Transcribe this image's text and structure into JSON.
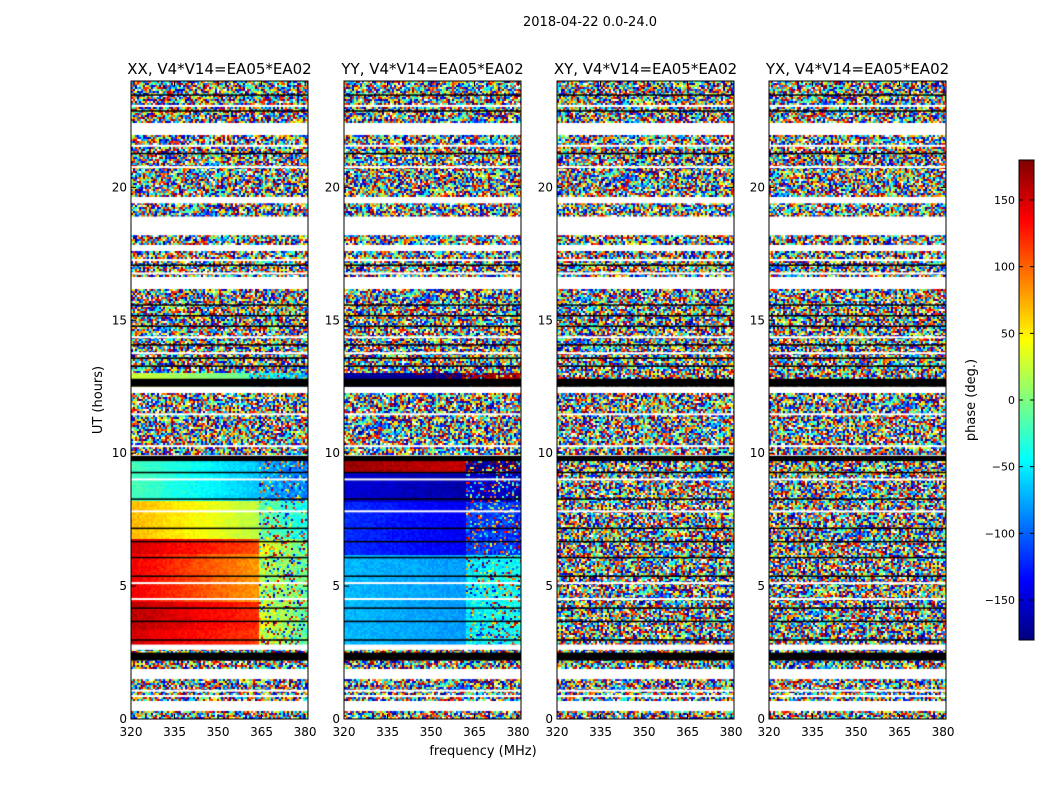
{
  "figure": {
    "suptitle": "2018-04-22 0.0-24.0",
    "xlabel": "frequency (MHz)",
    "ylabel": "UT (hours)"
  },
  "colorbar": {
    "label": "phase (deg.)",
    "range": [
      -180,
      180
    ],
    "ticks": [
      -150,
      -100,
      -50,
      0,
      50,
      100,
      150
    ],
    "tick_labels": [
      "−150",
      "−100",
      "−50",
      "0",
      "50",
      "100",
      "150"
    ],
    "colormap": "jet",
    "colors": [
      "#00007f",
      "#0000ff",
      "#007fff",
      "#00ffff",
      "#7fff7f",
      "#ffff00",
      "#ff7f00",
      "#ff0000",
      "#7f0000"
    ]
  },
  "chart_data": {
    "type": "heatmap",
    "value": "phase (deg.)",
    "xlim": [
      320,
      381
    ],
    "ylim": [
      0,
      24
    ],
    "x_ticks": [
      320,
      335,
      350,
      365,
      380
    ],
    "y_ticks": [
      0,
      5,
      10,
      15,
      20
    ],
    "panels": [
      {
        "title": "XX, V4*V14=EA05*EA02",
        "segments": [
          {
            "y": [
              2.8,
              3.4
            ],
            "x_split": 364,
            "before": [
              150,
              115
            ],
            "after": [
              30,
              -20
            ]
          },
          {
            "y": [
              3.4,
              4.4
            ],
            "x_split": 364,
            "before": [
              160,
              120
            ],
            "after": [
              40,
              -15
            ]
          },
          {
            "y": [
              4.4,
              6.2
            ],
            "x_split": 364,
            "before": [
              140,
              80
            ],
            "after": [
              20,
              -10
            ]
          },
          {
            "y": [
              6.2,
              6.8
            ],
            "x_split": 364,
            "before": [
              150,
              110
            ],
            "after": [
              40,
              -10
            ]
          },
          {
            "y": [
              6.8,
              8.2
            ],
            "x_split": 364,
            "before": [
              70,
              20
            ],
            "after": [
              -10,
              -40
            ]
          },
          {
            "y": [
              8.2,
              9.7
            ],
            "x_split": 364,
            "before": [
              -20,
              -65
            ],
            "after": [
              -70,
              -95
            ]
          },
          {
            "y": [
              12.5,
              13.0
            ],
            "x_split": 360,
            "before": [
              30,
              -10
            ],
            "after": [
              -40,
              -70
            ]
          }
        ]
      },
      {
        "title": "YY, V4*V14=EA05*EA02",
        "segments": [
          {
            "y": [
              2.8,
              6.2
            ],
            "x_split": 362,
            "before": [
              -70,
              -80
            ],
            "after": [
              -50,
              -40
            ]
          },
          {
            "y": [
              6.2,
              8.2
            ],
            "x_split": 362,
            "before": [
              -120,
              -140
            ],
            "after": [
              -110,
              -120
            ]
          },
          {
            "y": [
              8.2,
              9.3
            ],
            "x_split": 362,
            "before": [
              -150,
              -165
            ],
            "after": [
              -150,
              -160
            ]
          },
          {
            "y": [
              9.3,
              9.7
            ],
            "x_split": 362,
            "before": [
              170,
              155
            ],
            "after": [
              -170,
              -175
            ]
          },
          {
            "y": [
              12.5,
              13.0
            ],
            "x_split": 360,
            "before": [
              -170,
              -175
            ],
            "after": [
              170,
              160
            ]
          }
        ]
      },
      {
        "title": "XY, V4*V14=EA05*EA02",
        "segments": []
      },
      {
        "title": "YX, V4*V14=EA05*EA02",
        "segments": []
      }
    ],
    "noise_bands": [
      [
        0.0,
        0.3
      ],
      [
        0.65,
        1.5
      ],
      [
        1.85,
        2.6
      ],
      [
        2.8,
        9.7
      ],
      [
        9.9,
        12.3
      ],
      [
        12.5,
        16.2
      ],
      [
        16.6,
        17.6
      ],
      [
        17.8,
        18.2
      ],
      [
        18.9,
        19.4
      ],
      [
        19.6,
        22.0
      ],
      [
        22.4,
        24.0
      ]
    ],
    "blank_bands": [
      [
        0.3,
        0.65
      ],
      [
        1.5,
        1.85
      ],
      [
        2.6,
        2.8
      ],
      [
        12.3,
        12.5
      ],
      [
        18.2,
        18.9
      ],
      [
        19.4,
        19.6
      ]
    ],
    "dark_bands": [
      [
        12.5,
        12.8
      ],
      [
        2.2,
        2.5
      ],
      [
        9.7,
        9.9
      ]
    ],
    "white_lines": [
      0.9,
      1.1,
      4.55,
      5.15,
      7.85,
      9.05,
      10.3,
      11.5,
      13.8,
      14.4,
      16.8,
      17.3,
      20.8,
      21.6,
      23.1
    ],
    "black_lines": [
      3.0,
      3.7,
      4.2,
      5.4,
      6.1,
      6.7,
      7.2,
      8.3,
      9.3,
      13.3,
      13.6,
      14.1,
      14.8,
      15.2,
      15.6,
      17.1,
      21.3,
      22.9,
      23.5
    ]
  }
}
